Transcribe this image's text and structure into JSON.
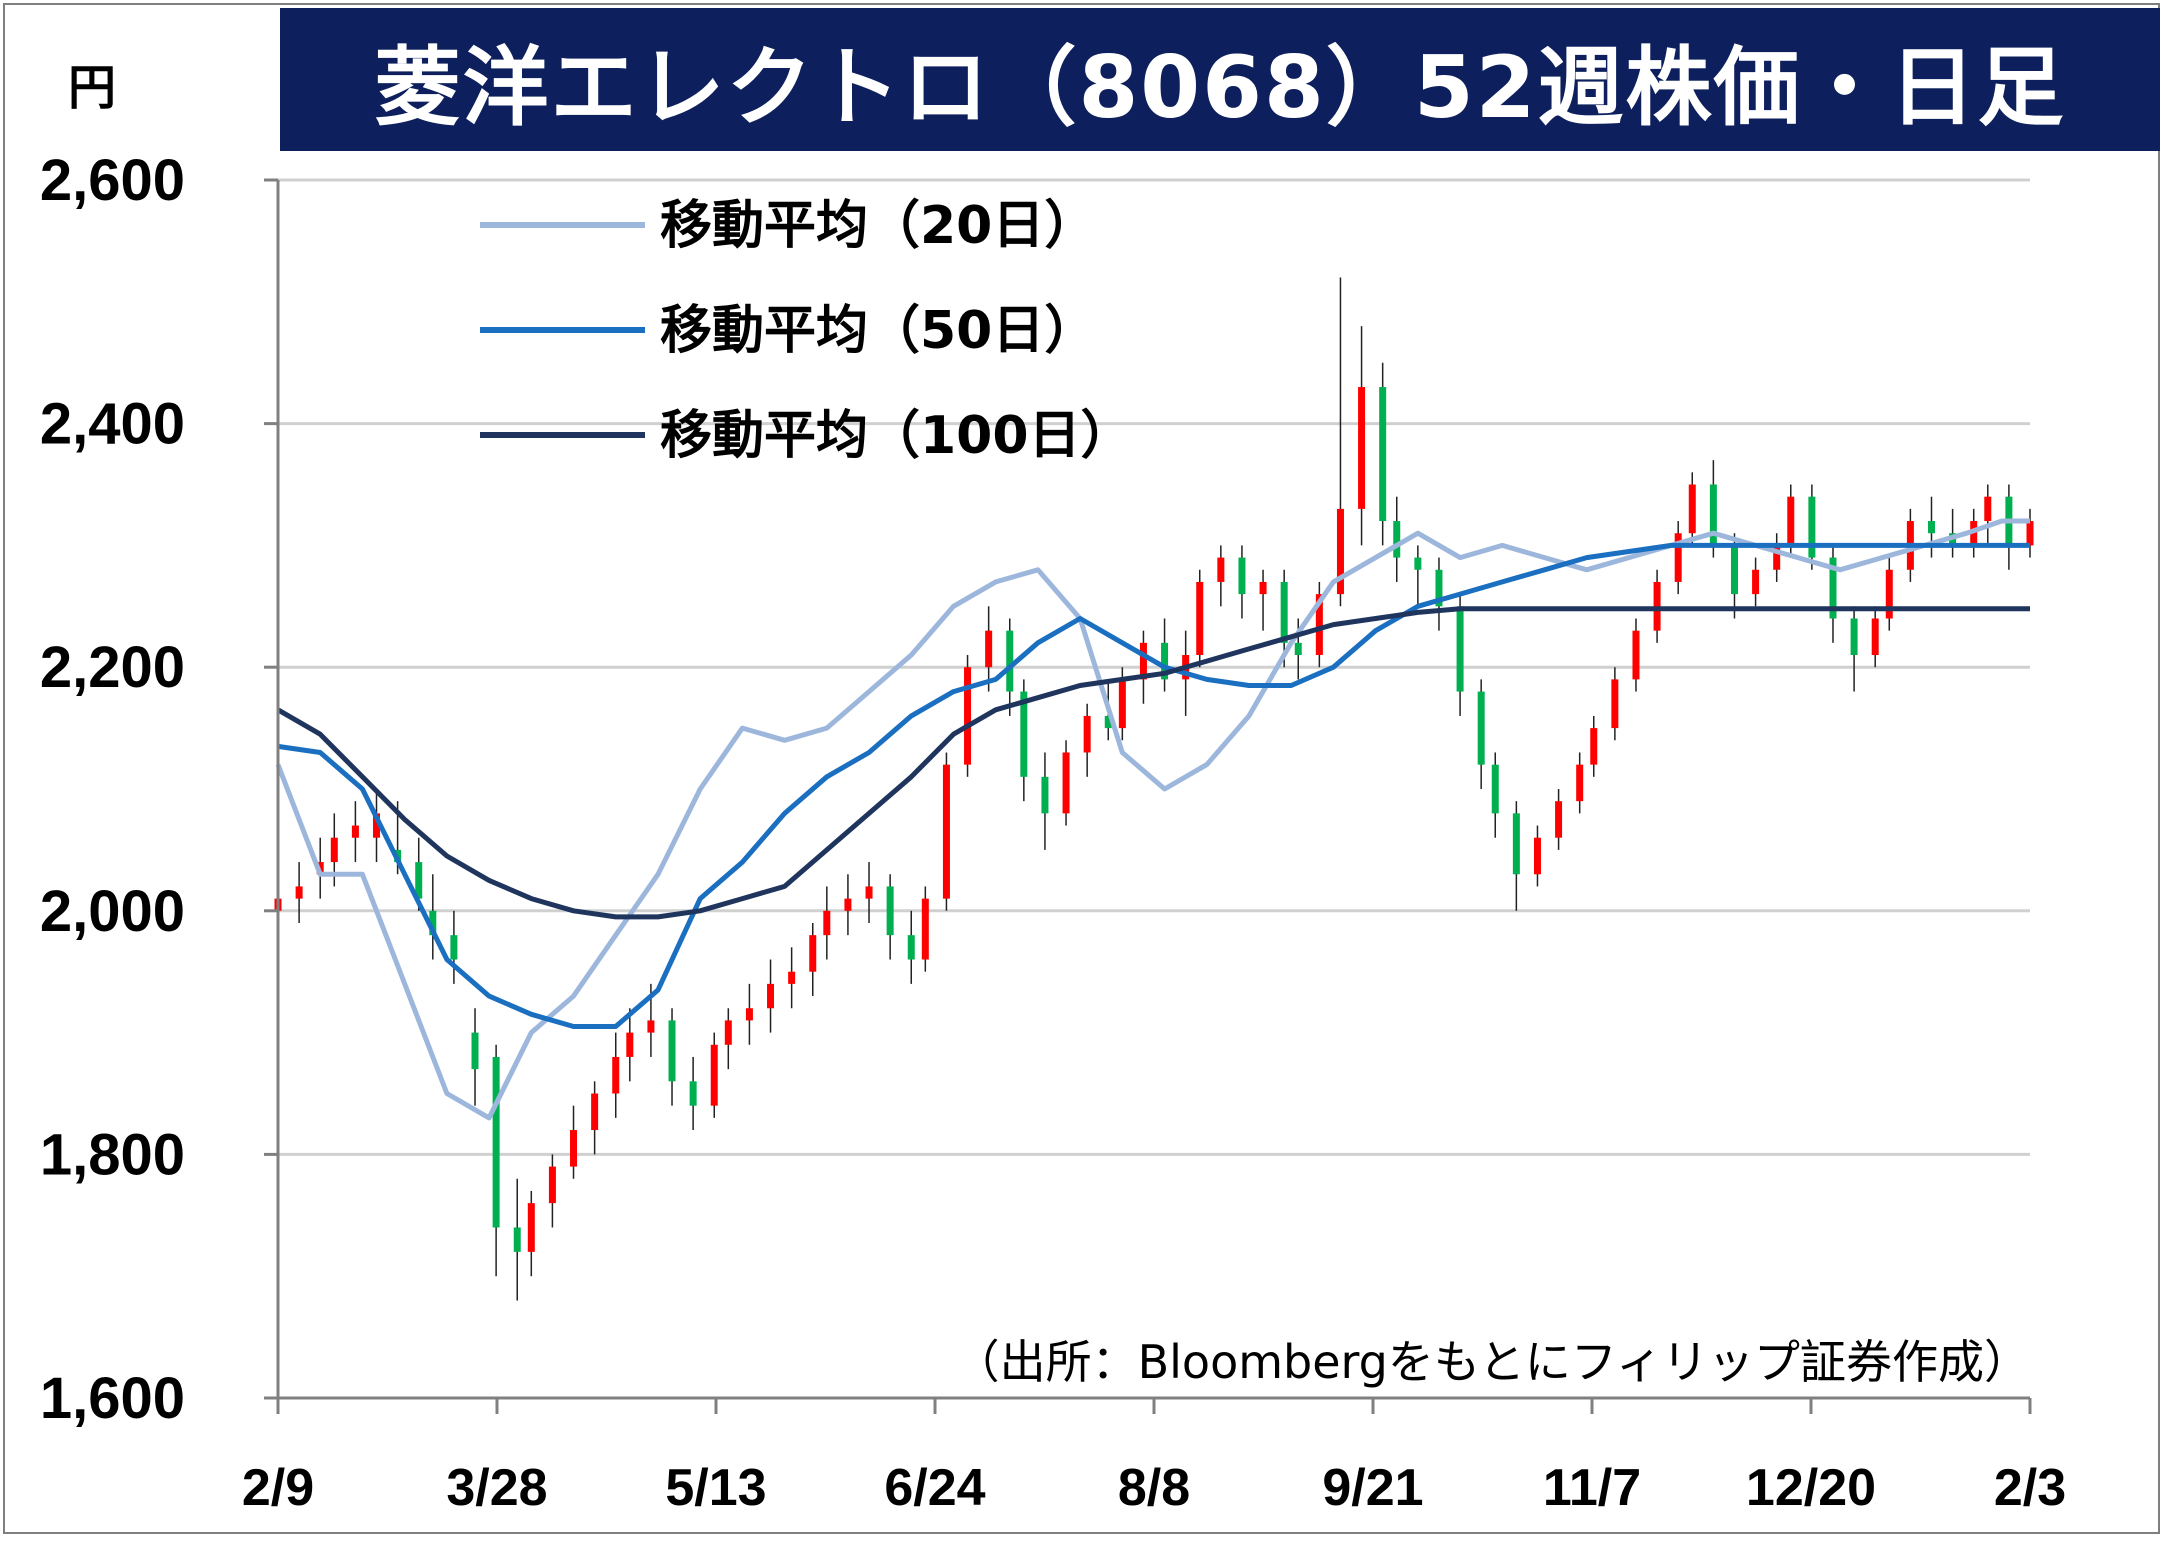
{
  "chart_data": {
    "type": "candlestick",
    "title": "菱洋エレクトロ（8068）52週株価・日足",
    "unit": "円",
    "source": "（出所：Bloombergをもとにフィリップ証券作成）",
    "ylim": [
      1600,
      2600
    ],
    "y_ticks": [
      "2,600",
      "2,400",
      "2,200",
      "2,000",
      "1,800",
      "1,600"
    ],
    "x_ticks": [
      "2/9",
      "3/28",
      "5/13",
      "6/24",
      "8/8",
      "9/21",
      "11/7",
      "12/20",
      "2/3"
    ],
    "grid": "horizontal",
    "legend_position": "top-left",
    "series": [
      {
        "name": "移動平均（20日）",
        "color": "#9db7dc",
        "x": [
          0,
          6,
          12,
          18,
          24,
          30,
          36,
          42,
          48,
          54,
          60,
          66,
          72,
          78,
          84,
          90,
          96,
          102,
          108,
          114,
          120,
          126,
          132,
          138,
          144,
          150,
          156,
          162,
          168,
          174,
          180,
          186,
          192,
          198,
          204,
          210,
          216,
          222,
          228,
          234,
          240,
          245,
          249
        ],
        "values": [
          2120,
          2030,
          2030,
          1940,
          1850,
          1830,
          1900,
          1930,
          1980,
          2030,
          2100,
          2150,
          2140,
          2150,
          2180,
          2210,
          2250,
          2270,
          2280,
          2240,
          2130,
          2100,
          2120,
          2160,
          2220,
          2270,
          2290,
          2310,
          2290,
          2300,
          2290,
          2280,
          2290,
          2300,
          2310,
          2300,
          2290,
          2280,
          2290,
          2300,
          2310,
          2320,
          2320
        ]
      },
      {
        "name": "移動平均（50日）",
        "color": "#1a6fc0",
        "x": [
          0,
          6,
          12,
          18,
          24,
          30,
          36,
          42,
          48,
          54,
          60,
          66,
          72,
          78,
          84,
          90,
          96,
          102,
          108,
          114,
          120,
          126,
          132,
          138,
          144,
          150,
          156,
          162,
          168,
          174,
          180,
          186,
          192,
          198,
          204,
          210,
          216,
          222,
          228,
          234,
          240,
          245,
          249
        ],
        "values": [
          2135,
          2130,
          2100,
          2030,
          1960,
          1930,
          1915,
          1905,
          1905,
          1935,
          2010,
          2040,
          2080,
          2110,
          2130,
          2160,
          2180,
          2190,
          2220,
          2240,
          2220,
          2200,
          2190,
          2185,
          2185,
          2200,
          2230,
          2250,
          2260,
          2270,
          2280,
          2290,
          2295,
          2300,
          2300,
          2300,
          2300,
          2300,
          2300,
          2300,
          2300,
          2300,
          2300
        ]
      },
      {
        "name": "移動平均（100日）",
        "color": "#1f355e",
        "x": [
          0,
          6,
          12,
          18,
          24,
          30,
          36,
          42,
          48,
          54,
          60,
          66,
          72,
          78,
          84,
          90,
          96,
          102,
          108,
          114,
          120,
          126,
          132,
          138,
          144,
          150,
          156,
          162,
          168,
          174,
          180,
          186,
          192,
          198,
          204,
          210,
          216,
          222,
          228,
          234,
          240,
          245,
          249
        ],
        "values": [
          2165,
          2145,
          2110,
          2075,
          2045,
          2025,
          2010,
          2000,
          1995,
          1995,
          2000,
          2010,
          2020,
          2050,
          2080,
          2110,
          2145,
          2165,
          2175,
          2185,
          2190,
          2195,
          2205,
          2215,
          2225,
          2235,
          2240,
          2245,
          2248,
          2248,
          2248,
          2248,
          2248,
          2248,
          2248,
          2248,
          2248,
          2248,
          2248,
          2248,
          2248,
          2248,
          2248
        ]
      }
    ],
    "candles": {
      "up_color": "#ff0000",
      "down_color": "#00b050",
      "ohlc": [
        [
          2000,
          2030,
          1980,
          2010
        ],
        [
          2010,
          2040,
          1990,
          2020
        ],
        [
          2030,
          2060,
          2010,
          2040
        ],
        [
          2040,
          2080,
          2020,
          2060
        ],
        [
          2060,
          2090,
          2040,
          2070
        ],
        [
          2060,
          2100,
          2040,
          2080
        ],
        [
          2050,
          2090,
          2030,
          2040
        ],
        [
          2040,
          2060,
          2000,
          2010
        ],
        [
          2000,
          2030,
          1960,
          1980
        ],
        [
          1980,
          2000,
          1940,
          1960
        ],
        [
          1900,
          1920,
          1840,
          1870
        ],
        [
          1880,
          1890,
          1700,
          1740
        ],
        [
          1740,
          1780,
          1680,
          1720
        ],
        [
          1720,
          1770,
          1700,
          1760
        ],
        [
          1760,
          1800,
          1740,
          1790
        ],
        [
          1790,
          1840,
          1780,
          1820
        ],
        [
          1820,
          1860,
          1800,
          1850
        ],
        [
          1850,
          1900,
          1830,
          1880
        ],
        [
          1880,
          1920,
          1860,
          1900
        ],
        [
          1900,
          1940,
          1880,
          1910
        ],
        [
          1910,
          1920,
          1840,
          1860
        ],
        [
          1860,
          1880,
          1820,
          1840
        ],
        [
          1840,
          1900,
          1830,
          1890
        ],
        [
          1890,
          1920,
          1870,
          1910
        ],
        [
          1910,
          1940,
          1890,
          1920
        ],
        [
          1920,
          1960,
          1900,
          1940
        ],
        [
          1940,
          1970,
          1920,
          1950
        ],
        [
          1950,
          1990,
          1930,
          1980
        ],
        [
          1980,
          2020,
          1960,
          2000
        ],
        [
          2000,
          2030,
          1980,
          2010
        ],
        [
          2010,
          2040,
          1990,
          2020
        ],
        [
          2020,
          2030,
          1960,
          1980
        ],
        [
          1980,
          2000,
          1940,
          1960
        ],
        [
          1960,
          2020,
          1950,
          2010
        ],
        [
          2010,
          2130,
          2000,
          2120
        ],
        [
          2120,
          2210,
          2110,
          2200
        ],
        [
          2200,
          2250,
          2180,
          2230
        ],
        [
          2230,
          2240,
          2160,
          2180
        ],
        [
          2180,
          2190,
          2090,
          2110
        ],
        [
          2110,
          2130,
          2050,
          2080
        ],
        [
          2080,
          2140,
          2070,
          2130
        ],
        [
          2130,
          2170,
          2110,
          2160
        ],
        [
          2160,
          2190,
          2140,
          2150
        ],
        [
          2150,
          2200,
          2140,
          2190
        ],
        [
          2190,
          2230,
          2170,
          2220
        ],
        [
          2220,
          2240,
          2180,
          2190
        ],
        [
          2190,
          2230,
          2160,
          2210
        ],
        [
          2210,
          2280,
          2200,
          2270
        ],
        [
          2270,
          2300,
          2250,
          2290
        ],
        [
          2290,
          2300,
          2240,
          2260
        ],
        [
          2260,
          2280,
          2230,
          2270
        ],
        [
          2270,
          2280,
          2200,
          2220
        ],
        [
          2220,
          2240,
          2190,
          2210
        ],
        [
          2210,
          2270,
          2200,
          2260
        ],
        [
          2260,
          2520,
          2250,
          2330
        ],
        [
          2330,
          2480,
          2300,
          2430
        ],
        [
          2430,
          2450,
          2300,
          2320
        ],
        [
          2320,
          2340,
          2270,
          2290
        ],
        [
          2290,
          2300,
          2250,
          2280
        ],
        [
          2280,
          2290,
          2230,
          2250
        ],
        [
          2250,
          2260,
          2160,
          2180
        ],
        [
          2180,
          2190,
          2100,
          2120
        ],
        [
          2120,
          2130,
          2060,
          2080
        ],
        [
          2080,
          2090,
          2000,
          2030
        ],
        [
          2030,
          2070,
          2020,
          2060
        ],
        [
          2060,
          2100,
          2050,
          2090
        ],
        [
          2090,
          2130,
          2080,
          2120
        ],
        [
          2120,
          2160,
          2110,
          2150
        ],
        [
          2150,
          2200,
          2140,
          2190
        ],
        [
          2190,
          2240,
          2180,
          2230
        ],
        [
          2230,
          2280,
          2220,
          2270
        ],
        [
          2270,
          2320,
          2260,
          2310
        ],
        [
          2310,
          2360,
          2300,
          2350
        ],
        [
          2350,
          2370,
          2290,
          2300
        ],
        [
          2300,
          2310,
          2240,
          2260
        ],
        [
          2260,
          2290,
          2250,
          2280
        ],
        [
          2280,
          2310,
          2270,
          2300
        ],
        [
          2300,
          2350,
          2290,
          2340
        ],
        [
          2340,
          2350,
          2280,
          2290
        ],
        [
          2290,
          2300,
          2220,
          2240
        ],
        [
          2240,
          2250,
          2180,
          2210
        ],
        [
          2210,
          2250,
          2200,
          2240
        ],
        [
          2240,
          2290,
          2230,
          2280
        ],
        [
          2280,
          2330,
          2270,
          2320
        ],
        [
          2320,
          2340,
          2290,
          2310
        ],
        [
          2310,
          2330,
          2290,
          2300
        ],
        [
          2300,
          2330,
          2290,
          2320
        ],
        [
          2320,
          2350,
          2300,
          2340
        ],
        [
          2340,
          2350,
          2280,
          2300
        ],
        [
          2300,
          2330,
          2290,
          2320
        ]
      ]
    }
  }
}
